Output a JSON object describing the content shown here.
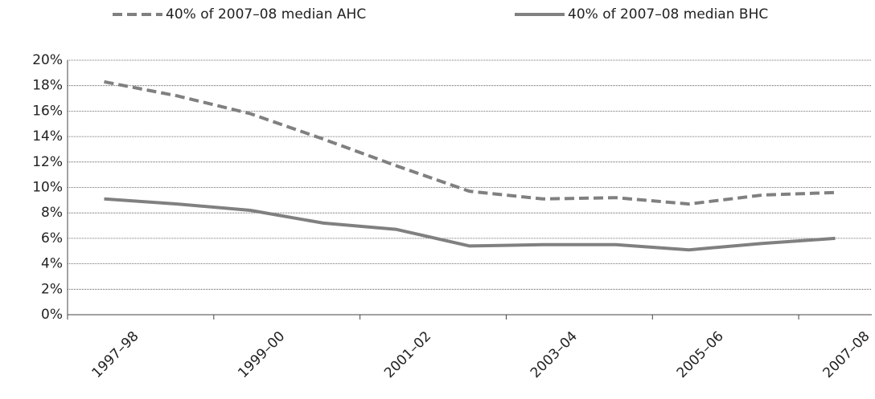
{
  "chart_data": {
    "type": "line",
    "categories": [
      "1997–98",
      null,
      "1999–00",
      null,
      "2001–02",
      null,
      "2003–04",
      null,
      "2005–06",
      null,
      "2007–08"
    ],
    "series": [
      {
        "name": "40% of 2007–08 median AHC",
        "color": "#808080",
        "dash": true,
        "values": [
          18.3,
          17.2,
          15.8,
          13.8,
          11.7,
          9.7,
          9.1,
          9.2,
          8.7,
          9.4,
          9.6
        ]
      },
      {
        "name": "40% of 2007–08 median BHC",
        "color": "#808080",
        "dash": false,
        "values": [
          9.1,
          8.7,
          8.2,
          7.2,
          6.7,
          5.4,
          5.5,
          5.5,
          5.1,
          5.6,
          6.0
        ]
      }
    ],
    "ylim": [
      0,
      20
    ],
    "yticks": [
      {
        "value": 0,
        "label": "0%"
      },
      {
        "value": 2,
        "label": "2%"
      },
      {
        "value": 4,
        "label": "4%"
      },
      {
        "value": 6,
        "label": "6%"
      },
      {
        "value": 8,
        "label": "8%"
      },
      {
        "value": 10,
        "label": "10%"
      },
      {
        "value": 12,
        "label": "12%"
      },
      {
        "value": 14,
        "label": "14%"
      },
      {
        "value": 16,
        "label": "16%"
      },
      {
        "value": 18,
        "label": "18%"
      },
      {
        "value": 20,
        "label": "20%"
      }
    ],
    "grid": true,
    "legend": "top"
  }
}
